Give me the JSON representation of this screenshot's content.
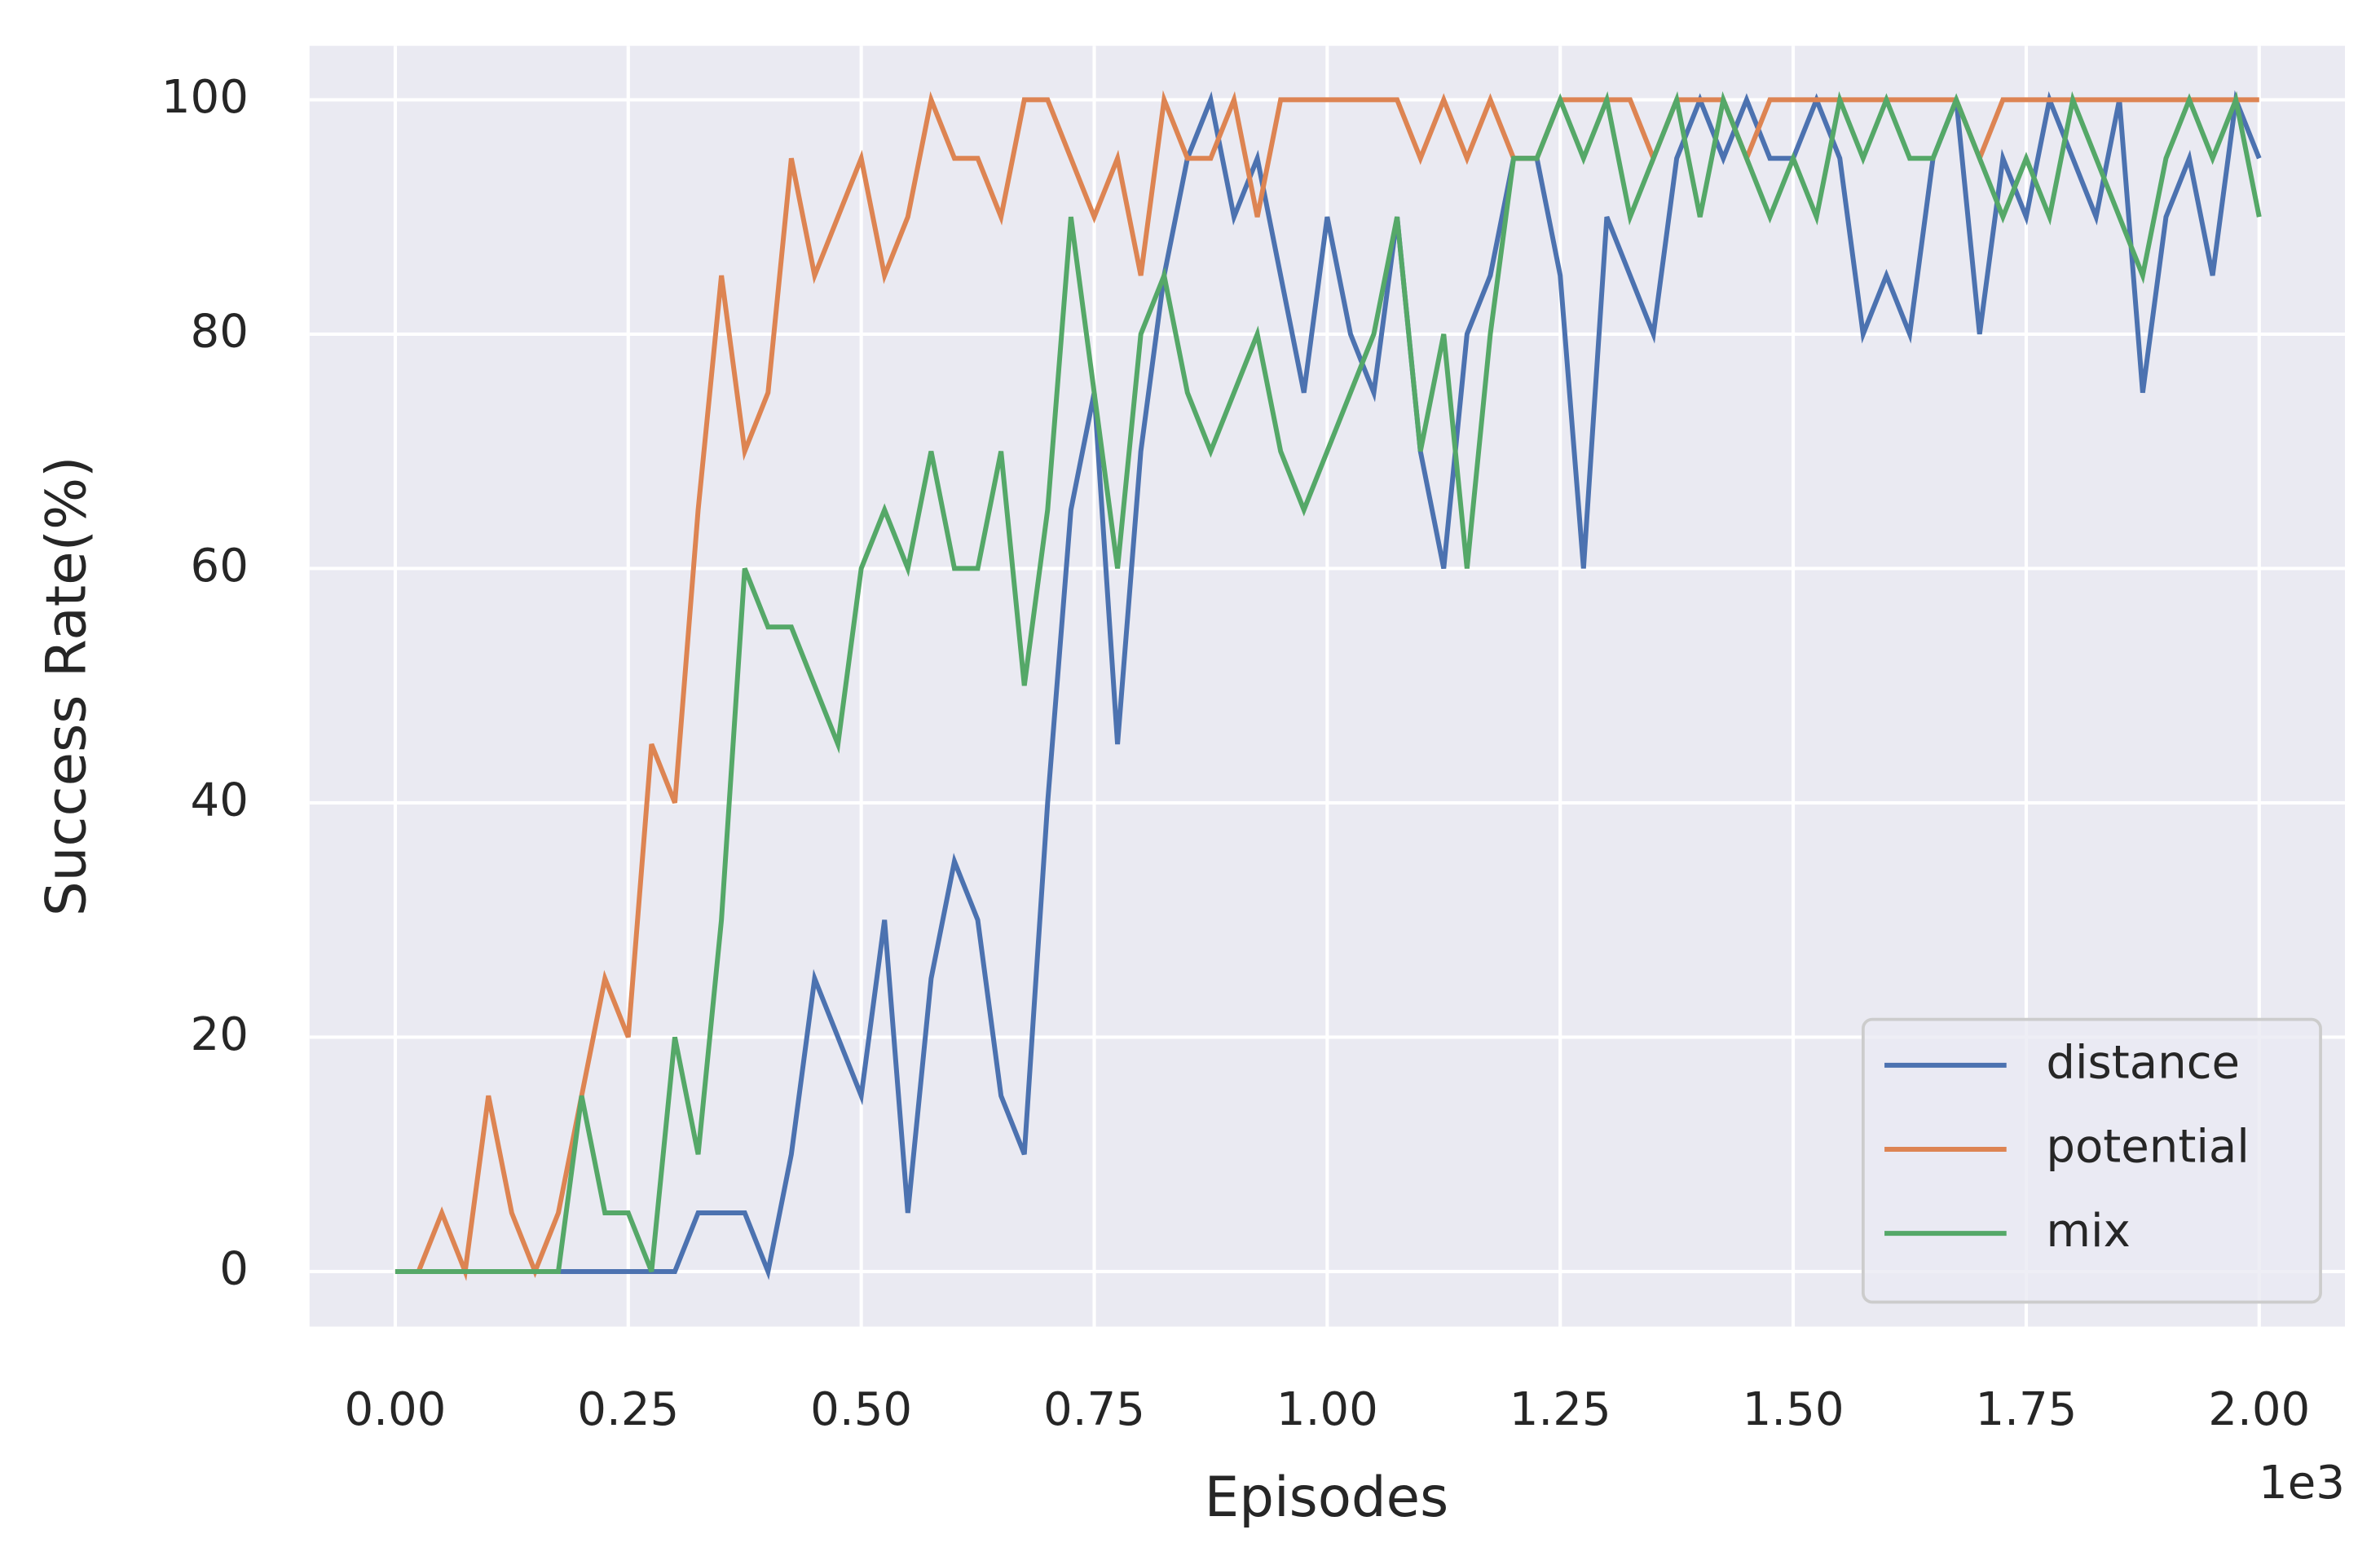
{
  "chart_data": {
    "type": "line",
    "xlabel": "Episodes",
    "ylabel": "Success Rate(%)",
    "x_offset_label": "1e3",
    "x": [
      0,
      0.025,
      0.05,
      0.075,
      0.1,
      0.125,
      0.15,
      0.175,
      0.2,
      0.225,
      0.25,
      0.275,
      0.3,
      0.325,
      0.35,
      0.375,
      0.4,
      0.425,
      0.45,
      0.475,
      0.5,
      0.525,
      0.55,
      0.575,
      0.6,
      0.625,
      0.65,
      0.675,
      0.7,
      0.725,
      0.75,
      0.775,
      0.8,
      0.825,
      0.85,
      0.875,
      0.9,
      0.925,
      0.95,
      0.975,
      1.0,
      1.025,
      1.05,
      1.075,
      1.1,
      1.125,
      1.15,
      1.175,
      1.2,
      1.225,
      1.25,
      1.275,
      1.3,
      1.325,
      1.35,
      1.375,
      1.4,
      1.425,
      1.45,
      1.475,
      1.5,
      1.525,
      1.55,
      1.575,
      1.6,
      1.625,
      1.65,
      1.675,
      1.7,
      1.725,
      1.75,
      1.775,
      1.8,
      1.825,
      1.85,
      1.875,
      1.9,
      1.925,
      1.95,
      1.975,
      2.0
    ],
    "series": [
      {
        "name": "distance",
        "color": "#4c72b0",
        "values": [
          0,
          0,
          0,
          0,
          0,
          0,
          0,
          0,
          0,
          0,
          0,
          0,
          0,
          5,
          5,
          5,
          0,
          10,
          25,
          20,
          15,
          30,
          5,
          25,
          35,
          30,
          15,
          10,
          40,
          65,
          75,
          45,
          70,
          85,
          95,
          100,
          90,
          95,
          85,
          75,
          90,
          80,
          75,
          90,
          70,
          60,
          80,
          85,
          95,
          95,
          85,
          60,
          90,
          85,
          80,
          95,
          100,
          95,
          100,
          95,
          95,
          100,
          95,
          80,
          85,
          80,
          95,
          100,
          80,
          95,
          90,
          100,
          95,
          90,
          100,
          75,
          90,
          95,
          85,
          100,
          95
        ]
      },
      {
        "name": "potential",
        "color": "#dd8452",
        "values": [
          0,
          0,
          5,
          0,
          15,
          5,
          0,
          5,
          15,
          25,
          20,
          45,
          40,
          65,
          85,
          70,
          75,
          95,
          85,
          90,
          95,
          85,
          90,
          100,
          95,
          95,
          90,
          100,
          100,
          95,
          90,
          95,
          85,
          100,
          95,
          95,
          100,
          90,
          100,
          100,
          100,
          100,
          100,
          100,
          95,
          100,
          95,
          100,
          95,
          95,
          100,
          100,
          100,
          100,
          95,
          100,
          100,
          100,
          95,
          100,
          100,
          100,
          100,
          100,
          100,
          100,
          100,
          100,
          95,
          100,
          100,
          100,
          100,
          100,
          100,
          100,
          100,
          100,
          100,
          100,
          100
        ]
      },
      {
        "name": "mix",
        "color": "#55a868",
        "values": [
          0,
          0,
          0,
          0,
          0,
          0,
          0,
          0,
          15,
          5,
          5,
          0,
          20,
          10,
          30,
          60,
          55,
          55,
          50,
          45,
          60,
          65,
          60,
          70,
          60,
          60,
          70,
          50,
          65,
          90,
          75,
          60,
          80,
          85,
          75,
          70,
          75,
          80,
          70,
          65,
          70,
          75,
          80,
          90,
          70,
          80,
          60,
          80,
          95,
          95,
          100,
          95,
          100,
          90,
          95,
          100,
          90,
          100,
          95,
          90,
          95,
          90,
          100,
          95,
          100,
          95,
          95,
          100,
          95,
          90,
          95,
          90,
          100,
          95,
          90,
          85,
          95,
          100,
          95,
          100,
          90
        ]
      }
    ],
    "xlim": [
      -0.092,
      2.092
    ],
    "ylim": [
      -4.7,
      104.6
    ],
    "xticks": [
      {
        "value": 0,
        "label": "0.00"
      },
      0.25,
      {
        "value": 0.5,
        "label": "0.50"
      },
      0.75,
      {
        "value": 1,
        "label": "1.00"
      },
      1.25,
      {
        "value": 1.5,
        "label": "1.50"
      },
      1.75,
      {
        "value": 2,
        "label": "2.00"
      }
    ],
    "yticks": [
      0,
      20,
      40,
      60,
      80,
      100
    ],
    "grid": true,
    "legend": "lower right"
  }
}
